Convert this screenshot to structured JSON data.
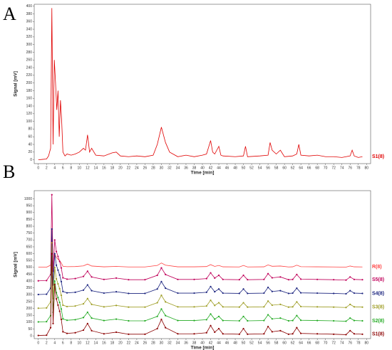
{
  "chart_data": [
    {
      "type": "line",
      "panel_label": "A",
      "xlabel": "Time [min]",
      "ylabel": "Signal [mV]",
      "xlim": [
        -1,
        81
      ],
      "ylim": [
        -10,
        405
      ],
      "xticks": [
        0,
        2,
        4,
        6,
        8,
        10,
        12,
        14,
        16,
        18,
        20,
        22,
        24,
        26,
        28,
        30,
        32,
        34,
        36,
        38,
        40,
        42,
        44,
        46,
        48,
        50,
        52,
        54,
        56,
        58,
        60,
        62,
        64,
        66,
        68,
        70,
        72,
        74,
        76,
        78,
        80
      ],
      "yticks": [
        0,
        20,
        40,
        60,
        80,
        100,
        120,
        140,
        160,
        180,
        200,
        220,
        240,
        260,
        280,
        300,
        320,
        340,
        360,
        380,
        400
      ],
      "x": [
        0,
        1,
        2,
        2.5,
        3,
        3.3,
        3.6,
        3.9,
        4.2,
        4.5,
        4.8,
        5.1,
        5.4,
        5.7,
        6,
        6.5,
        7,
        8,
        9,
        10,
        11,
        11.5,
        12,
        12.5,
        13,
        14,
        16,
        18,
        19,
        20,
        22,
        24,
        26,
        28,
        29,
        30,
        31,
        32,
        34,
        36,
        38,
        40,
        41,
        42,
        42.5,
        43,
        44,
        44.5,
        45,
        48,
        50,
        50.5,
        51,
        54,
        56,
        56.5,
        57,
        58,
        59,
        60,
        62,
        63,
        63.5,
        64,
        66,
        68,
        70,
        72,
        74,
        76,
        76.5,
        77,
        78,
        79
      ],
      "series": [
        {
          "name": "S1(8)",
          "color": "#e00000",
          "values": [
            0,
            1,
            2,
            10,
            30,
            395,
            40,
            260,
            200,
            130,
            180,
            60,
            155,
            100,
            20,
            10,
            15,
            12,
            15,
            20,
            30,
            25,
            65,
            20,
            30,
            12,
            10,
            18,
            20,
            10,
            8,
            10,
            8,
            12,
            40,
            85,
            45,
            20,
            8,
            12,
            8,
            12,
            15,
            50,
            20,
            15,
            35,
            12,
            10,
            8,
            10,
            35,
            8,
            10,
            12,
            45,
            25,
            15,
            25,
            8,
            10,
            15,
            40,
            12,
            10,
            12,
            8,
            8,
            6,
            10,
            25,
            10,
            6,
            8
          ]
        }
      ]
    },
    {
      "type": "line",
      "panel_label": "B",
      "xlabel": "Time [min]",
      "ylabel": "Signal [mV]",
      "markers": true,
      "xlim": [
        -1,
        81
      ],
      "ylim": [
        -20,
        1060
      ],
      "xticks": [
        0,
        2,
        4,
        6,
        8,
        10,
        12,
        14,
        16,
        18,
        20,
        22,
        24,
        26,
        28,
        30,
        32,
        34,
        36,
        38,
        40,
        42,
        44,
        46,
        48,
        50,
        52,
        54,
        56,
        58,
        60,
        62,
        64,
        66,
        68,
        70,
        72,
        74,
        76,
        78,
        80
      ],
      "yticks": [
        0,
        50,
        100,
        150,
        200,
        250,
        300,
        350,
        400,
        450,
        500,
        550,
        600,
        650,
        700,
        750,
        800,
        850,
        900,
        950,
        1000
      ],
      "x": [
        0,
        2,
        3,
        3.3,
        3.6,
        4,
        4.4,
        4.8,
        5.2,
        5.6,
        6,
        7,
        9,
        11,
        12,
        13,
        16,
        19,
        22,
        26,
        29,
        30,
        31,
        34,
        38,
        41,
        42,
        43,
        44,
        45,
        49,
        50,
        51,
        55,
        56,
        57,
        59,
        61,
        62,
        63,
        64,
        68,
        72,
        75,
        76,
        77,
        79
      ],
      "series": [
        {
          "name": "R(8)",
          "color": "#ff4040",
          "markers": false,
          "values": [
            501,
            501,
            516,
            660,
            524,
            600,
            572,
            560,
            548,
            532,
            508,
            505,
            506,
            511,
            524,
            510,
            504,
            507,
            503,
            503,
            514,
            532,
            516,
            504,
            504,
            506,
            520,
            507,
            514,
            504,
            503,
            514,
            503,
            504,
            518,
            508,
            510,
            503,
            504,
            516,
            505,
            504,
            503,
            502,
            510,
            504,
            503
          ]
        },
        {
          "name": "S5(8)",
          "color": "#c0005a",
          "markers": true,
          "values": [
            402,
            404,
            448,
            1030,
            472,
            700,
            616,
            580,
            544,
            496,
            424,
            414,
            418,
            434,
            472,
            430,
            412,
            422,
            410,
            410,
            442,
            496,
            448,
            412,
            412,
            418,
            460,
            422,
            442,
            412,
            410,
            442,
            410,
            412,
            454,
            424,
            430,
            410,
            412,
            448,
            414,
            412,
            410,
            407,
            430,
            412,
            410
          ]
        },
        {
          "name": "S4(8)",
          "color": "#1a237e",
          "markers": true,
          "values": [
            302,
            304,
            348,
            780,
            372,
            600,
            516,
            480,
            444,
            396,
            324,
            314,
            318,
            334,
            372,
            330,
            312,
            322,
            310,
            310,
            342,
            396,
            348,
            312,
            312,
            318,
            360,
            322,
            342,
            312,
            310,
            342,
            310,
            312,
            354,
            324,
            330,
            310,
            312,
            348,
            314,
            312,
            310,
            307,
            330,
            312,
            310
          ]
        },
        {
          "name": "S3(8)",
          "color": "#9e9d24",
          "markers": true,
          "values": [
            202,
            204,
            248,
            680,
            272,
            500,
            416,
            380,
            344,
            296,
            224,
            214,
            218,
            234,
            272,
            230,
            212,
            222,
            210,
            210,
            242,
            296,
            248,
            212,
            212,
            218,
            260,
            222,
            242,
            212,
            210,
            242,
            210,
            212,
            254,
            224,
            230,
            210,
            212,
            248,
            214,
            212,
            210,
            207,
            230,
            212,
            210
          ]
        },
        {
          "name": "S2(8)",
          "color": "#22aa22",
          "markers": true,
          "values": [
            102,
            104,
            148,
            580,
            172,
            400,
            316,
            280,
            244,
            196,
            124,
            114,
            118,
            134,
            172,
            130,
            112,
            122,
            110,
            110,
            142,
            196,
            148,
            112,
            112,
            118,
            160,
            122,
            142,
            112,
            110,
            142,
            110,
            112,
            154,
            124,
            130,
            110,
            112,
            148,
            114,
            112,
            110,
            107,
            130,
            112,
            110
          ]
        },
        {
          "name": "S1(8)",
          "color": "#8b0000",
          "markers": true,
          "values": [
            3,
            5,
            60,
            600,
            90,
            375,
            270,
            225,
            180,
            120,
            30,
            18,
            23,
            42,
            90,
            38,
            15,
            27,
            12,
            12,
            53,
            120,
            60,
            15,
            15,
            23,
            75,
            27,
            53,
            15,
            12,
            53,
            12,
            15,
            68,
            30,
            38,
            12,
            15,
            60,
            18,
            15,
            12,
            9,
            38,
            15,
            12
          ]
        }
      ]
    }
  ]
}
